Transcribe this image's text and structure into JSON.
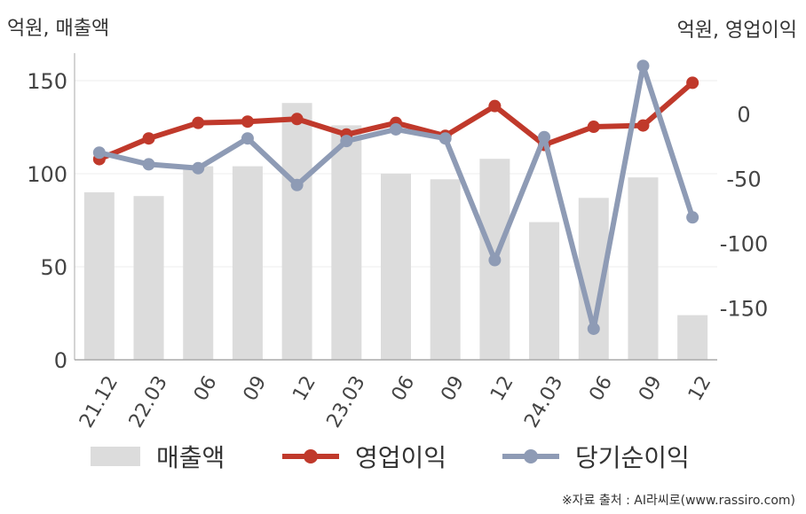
{
  "axis_titles": {
    "left": "억원, 매출액",
    "right": "억원, 영업이익"
  },
  "legend": [
    {
      "label": "매출액",
      "kind": "bar",
      "color": "#dcdcdc"
    },
    {
      "label": "영업이익",
      "kind": "line",
      "color": "#c0392b"
    },
    {
      "label": "당기순이익",
      "kind": "line",
      "color": "#8e9bb5"
    }
  ],
  "source_note": "※자료 출처 : AI라씨로(www.rassiro.com)",
  "chart_data": {
    "type": "bar",
    "categories": [
      "21.12",
      "22.03",
      "06",
      "09",
      "12",
      "23.03",
      "06",
      "09",
      "12",
      "24.03",
      "06",
      "09",
      "12"
    ],
    "left_axis": {
      "ylim": [
        0,
        160
      ],
      "ticks": [
        0,
        50,
        100,
        150
      ]
    },
    "right_axis": {
      "ylim": [
        -190,
        40
      ],
      "ticks": [
        0,
        -50,
        -100,
        -150
      ]
    },
    "grid": true,
    "legend_position": "bottom",
    "series": [
      {
        "name": "매출액",
        "type": "bar",
        "axis": "left",
        "color": "#dcdcdc",
        "values": [
          90,
          88,
          104,
          104,
          138,
          126,
          100,
          97,
          108,
          74,
          87,
          98,
          24
        ]
      },
      {
        "name": "영업이익",
        "type": "line",
        "axis": "right",
        "color": "#c0392b",
        "values": [
          -35,
          -19,
          -7,
          -6,
          -4,
          -16,
          -7,
          -17,
          6,
          -24,
          -10,
          -9,
          24
        ]
      },
      {
        "name": "당기순이익",
        "type": "line",
        "axis": "right",
        "color": "#8e9bb5",
        "values": [
          -30,
          -39,
          -42,
          -19,
          -55,
          -21,
          -12,
          -19,
          -113,
          -18,
          -166,
          37,
          -80
        ]
      }
    ]
  }
}
